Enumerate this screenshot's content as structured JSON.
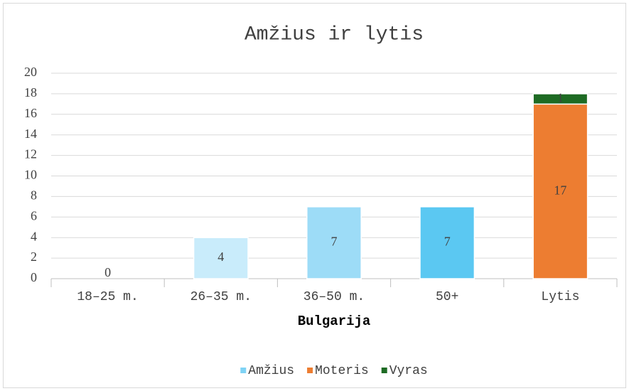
{
  "chart_data": {
    "type": "bar",
    "stacked": true,
    "title": "Amžius ir lytis",
    "x_label": "Bulgarija",
    "categories": [
      "18–25 m.",
      "26–35 m.",
      "36–50 m.",
      "50+",
      "Lytis"
    ],
    "series": [
      {
        "name": "Amžius",
        "color": "#7fd3f5",
        "colors": [
          "#e3f5fd",
          "#c9ecfb",
          "#9ddcf7",
          "#5bc8f2",
          "#7fd3f5"
        ],
        "values": [
          0,
          4,
          7,
          7,
          null
        ]
      },
      {
        "name": "Moteris",
        "color": "#ed7d31",
        "values": [
          null,
          null,
          null,
          null,
          17
        ]
      },
      {
        "name": "Vyras",
        "color": "#1e6b24",
        "values": [
          null,
          null,
          null,
          null,
          1
        ]
      }
    ],
    "ylim": [
      0,
      20
    ],
    "yticks": [
      0,
      2,
      4,
      6,
      8,
      10,
      12,
      14,
      16,
      18,
      20
    ],
    "grid": true,
    "legend": "bottom"
  }
}
